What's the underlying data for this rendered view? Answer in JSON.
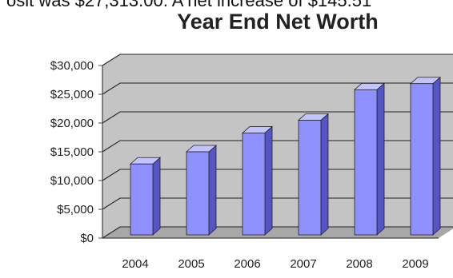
{
  "top_text": "osit was $27,313.00. A net increase of $145.51",
  "chart_data": {
    "type": "bar",
    "title": "Year End Net Worth",
    "categories": [
      "2004",
      "2005",
      "2006",
      "2007",
      "2008",
      "2009"
    ],
    "series": [
      {
        "values": [
          12800,
          15000,
          18400,
          20700,
          26200,
          27300
        ]
      }
    ],
    "ylim": [
      0,
      30000
    ],
    "yticks": [
      "$0",
      "$5,000",
      "$10,000",
      "$15,000",
      "$20,000",
      "$25,000",
      "$30,000"
    ],
    "ytick_values": [
      0,
      5000,
      10000,
      15000,
      20000,
      25000,
      30000
    ],
    "grid": true,
    "style": "3d",
    "colors": {
      "bar_front": "#8f90ff",
      "bar_side": "#5556c4",
      "bar_top": "#c2c3ff",
      "wall": "#c4c4c4",
      "floor": "#a8a8a8",
      "grid": "#222222"
    }
  }
}
